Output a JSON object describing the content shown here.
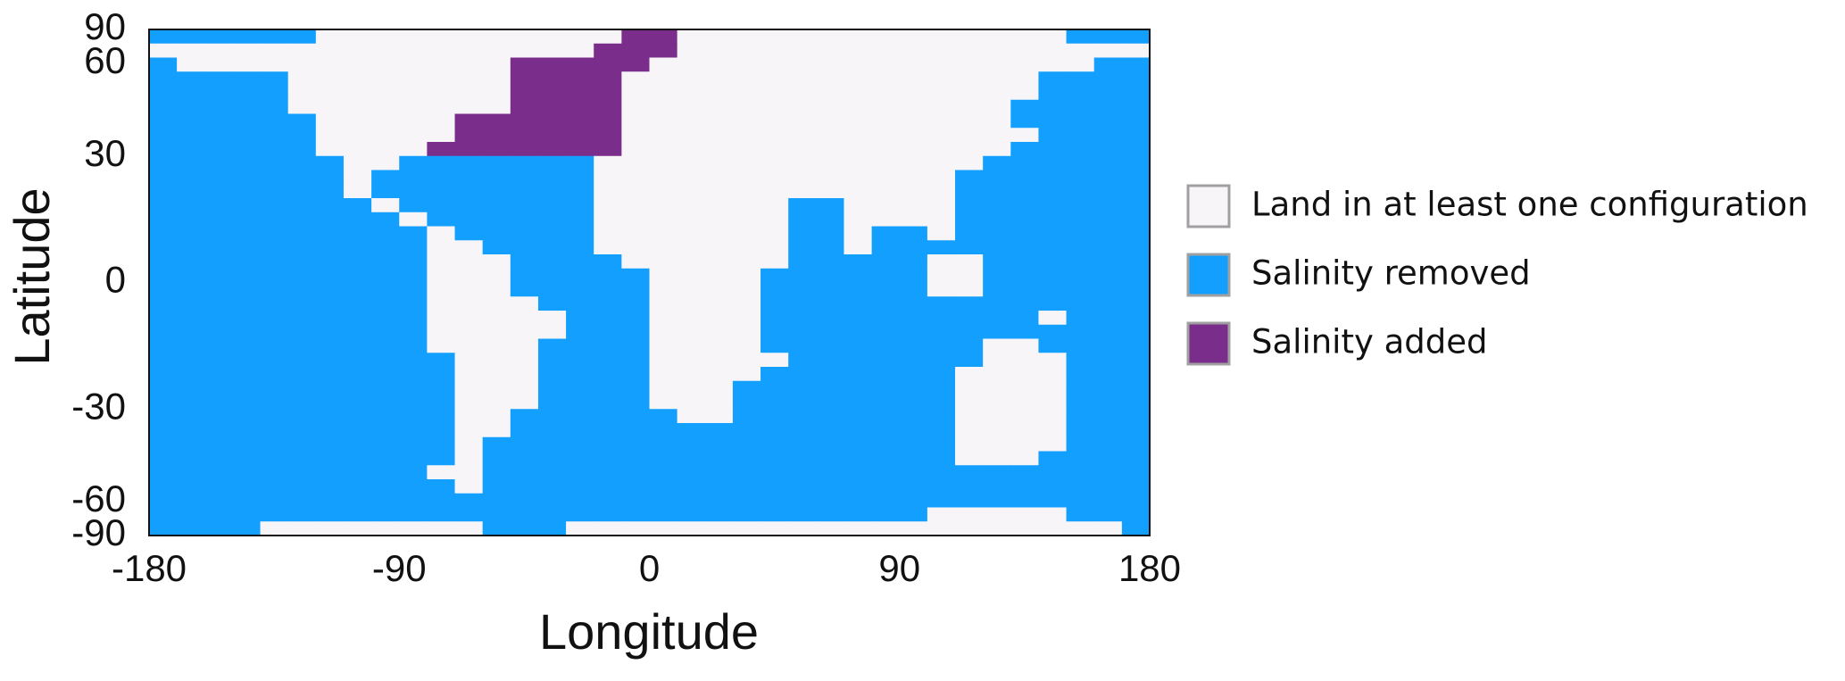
{
  "chart_data": {
    "type": "heatmap",
    "xlabel": "Longitude",
    "ylabel": "Latitude",
    "xlim": [
      -180,
      180
    ],
    "ylim": [
      -90,
      90
    ],
    "yscale": "sine",
    "xticks": [
      -180,
      -90,
      0,
      90,
      180
    ],
    "yticks": [
      -90,
      -60,
      -30,
      0,
      30,
      60,
      90
    ],
    "legend": "right",
    "series": [
      {
        "name": "Land in at least one configuration",
        "color": "#f8f5f9"
      },
      {
        "name": "Salinity removed",
        "color": "#139ffe"
      },
      {
        "name": "Salinity added",
        "color": "#7b2d8b"
      }
    ],
    "z": [
      [
        1,
        1,
        1,
        1,
        1,
        1,
        0,
        0,
        0,
        0,
        0,
        0,
        0,
        0,
        0,
        0,
        0,
        2,
        2,
        0,
        0,
        0,
        0,
        0,
        0,
        0,
        0,
        0,
        0,
        0,
        0,
        0,
        0,
        1,
        1,
        1
      ],
      [
        0,
        0,
        0,
        0,
        0,
        0,
        0,
        0,
        0,
        0,
        0,
        0,
        0,
        0,
        0,
        0,
        2,
        2,
        2,
        0,
        0,
        0,
        0,
        0,
        0,
        0,
        0,
        0,
        0,
        0,
        0,
        0,
        0,
        0,
        0,
        0
      ],
      [
        1,
        0,
        0,
        0,
        0,
        0,
        0,
        0,
        0,
        0,
        0,
        0,
        0,
        2,
        2,
        2,
        2,
        2,
        0,
        0,
        0,
        0,
        0,
        0,
        0,
        0,
        0,
        0,
        0,
        0,
        0,
        0,
        0,
        0,
        1,
        1
      ],
      [
        1,
        1,
        1,
        1,
        1,
        0,
        0,
        0,
        0,
        0,
        0,
        0,
        0,
        2,
        2,
        2,
        2,
        0,
        0,
        0,
        0,
        0,
        0,
        0,
        0,
        0,
        0,
        0,
        0,
        0,
        0,
        0,
        1,
        1,
        1,
        1
      ],
      [
        1,
        1,
        1,
        1,
        1,
        0,
        0,
        0,
        0,
        0,
        0,
        0,
        0,
        2,
        2,
        2,
        2,
        0,
        0,
        0,
        0,
        0,
        0,
        0,
        0,
        0,
        0,
        0,
        0,
        0,
        0,
        0,
        1,
        1,
        1,
        1
      ],
      [
        1,
        1,
        1,
        1,
        1,
        0,
        0,
        0,
        0,
        0,
        0,
        0,
        0,
        2,
        2,
        2,
        2,
        0,
        0,
        0,
        0,
        0,
        0,
        0,
        0,
        0,
        0,
        0,
        0,
        0,
        0,
        1,
        1,
        1,
        1,
        1
      ],
      [
        1,
        1,
        1,
        1,
        1,
        1,
        0,
        0,
        0,
        0,
        0,
        2,
        2,
        2,
        2,
        2,
        2,
        0,
        0,
        0,
        0,
        0,
        0,
        0,
        0,
        0,
        0,
        0,
        0,
        0,
        0,
        1,
        1,
        1,
        1,
        1
      ],
      [
        1,
        1,
        1,
        1,
        1,
        1,
        0,
        0,
        0,
        0,
        0,
        2,
        2,
        2,
        2,
        2,
        2,
        0,
        0,
        0,
        0,
        0,
        0,
        0,
        0,
        0,
        0,
        0,
        0,
        0,
        0,
        0,
        1,
        1,
        1,
        1
      ],
      [
        1,
        1,
        1,
        1,
        1,
        1,
        0,
        0,
        0,
        0,
        2,
        2,
        2,
        2,
        2,
        2,
        2,
        0,
        0,
        0,
        0,
        0,
        0,
        0,
        0,
        0,
        0,
        0,
        0,
        0,
        0,
        1,
        1,
        1,
        1,
        1
      ],
      [
        1,
        1,
        1,
        1,
        1,
        1,
        1,
        0,
        0,
        1,
        1,
        1,
        1,
        1,
        1,
        1,
        0,
        0,
        0,
        0,
        0,
        0,
        0,
        0,
        0,
        0,
        0,
        0,
        0,
        0,
        1,
        1,
        1,
        1,
        1,
        1
      ],
      [
        1,
        1,
        1,
        1,
        1,
        1,
        1,
        0,
        1,
        1,
        1,
        1,
        1,
        1,
        1,
        1,
        0,
        0,
        0,
        0,
        0,
        0,
        0,
        0,
        0,
        0,
        0,
        0,
        0,
        1,
        1,
        1,
        1,
        1,
        1,
        1
      ],
      [
        1,
        1,
        1,
        1,
        1,
        1,
        1,
        0,
        1,
        1,
        1,
        1,
        1,
        1,
        1,
        1,
        0,
        0,
        0,
        0,
        0,
        0,
        0,
        0,
        0,
        0,
        0,
        0,
        0,
        1,
        1,
        1,
        1,
        1,
        1,
        1
      ],
      [
        1,
        1,
        1,
        1,
        1,
        1,
        1,
        1,
        0,
        1,
        1,
        1,
        1,
        1,
        1,
        1,
        0,
        0,
        0,
        0,
        0,
        0,
        0,
        1,
        1,
        0,
        0,
        0,
        0,
        1,
        1,
        1,
        1,
        1,
        1,
        1
      ],
      [
        1,
        1,
        1,
        1,
        1,
        1,
        1,
        1,
        1,
        0,
        1,
        1,
        1,
        1,
        1,
        1,
        0,
        0,
        0,
        0,
        0,
        0,
        0,
        1,
        1,
        0,
        0,
        0,
        0,
        1,
        1,
        1,
        1,
        1,
        1,
        1
      ],
      [
        1,
        1,
        1,
        1,
        1,
        1,
        1,
        1,
        1,
        1,
        0,
        1,
        1,
        1,
        1,
        1,
        0,
        0,
        0,
        0,
        0,
        0,
        0,
        1,
        1,
        0,
        1,
        1,
        0,
        1,
        1,
        1,
        1,
        1,
        1,
        1
      ],
      [
        1,
        1,
        1,
        1,
        1,
        1,
        1,
        1,
        1,
        1,
        0,
        0,
        1,
        1,
        1,
        1,
        0,
        0,
        0,
        0,
        0,
        0,
        0,
        1,
        1,
        0,
        1,
        1,
        1,
        1,
        1,
        1,
        1,
        1,
        1,
        1
      ],
      [
        1,
        1,
        1,
        1,
        1,
        1,
        1,
        1,
        1,
        1,
        0,
        0,
        0,
        1,
        1,
        1,
        1,
        0,
        0,
        0,
        0,
        0,
        0,
        1,
        1,
        1,
        1,
        1,
        0,
        0,
        1,
        1,
        1,
        1,
        1,
        1
      ],
      [
        1,
        1,
        1,
        1,
        1,
        1,
        1,
        1,
        1,
        1,
        0,
        0,
        0,
        1,
        1,
        1,
        1,
        1,
        0,
        0,
        0,
        0,
        1,
        1,
        1,
        1,
        1,
        1,
        0,
        0,
        1,
        1,
        1,
        1,
        1,
        1
      ],
      [
        1,
        1,
        1,
        1,
        1,
        1,
        1,
        1,
        1,
        1,
        0,
        0,
        0,
        1,
        1,
        1,
        1,
        1,
        0,
        0,
        0,
        0,
        1,
        1,
        1,
        1,
        1,
        1,
        0,
        0,
        1,
        1,
        1,
        1,
        1,
        1
      ],
      [
        1,
        1,
        1,
        1,
        1,
        1,
        1,
        1,
        1,
        1,
        0,
        0,
        0,
        0,
        1,
        1,
        1,
        1,
        0,
        0,
        0,
        0,
        1,
        1,
        1,
        1,
        1,
        1,
        1,
        1,
        1,
        1,
        1,
        1,
        1,
        1
      ],
      [
        1,
        1,
        1,
        1,
        1,
        1,
        1,
        1,
        1,
        1,
        0,
        0,
        0,
        0,
        0,
        1,
        1,
        1,
        0,
        0,
        0,
        0,
        1,
        1,
        1,
        1,
        1,
        1,
        1,
        1,
        1,
        1,
        0,
        1,
        1,
        1
      ],
      [
        1,
        1,
        1,
        1,
        1,
        1,
        1,
        1,
        1,
        1,
        0,
        0,
        0,
        0,
        0,
        1,
        1,
        1,
        0,
        0,
        0,
        0,
        1,
        1,
        1,
        1,
        1,
        1,
        1,
        1,
        1,
        1,
        1,
        1,
        1,
        1
      ],
      [
        1,
        1,
        1,
        1,
        1,
        1,
        1,
        1,
        1,
        1,
        0,
        0,
        0,
        0,
        1,
        1,
        1,
        1,
        0,
        0,
        0,
        0,
        1,
        1,
        1,
        1,
        1,
        1,
        1,
        1,
        0,
        0,
        1,
        1,
        1,
        1
      ],
      [
        1,
        1,
        1,
        1,
        1,
        1,
        1,
        1,
        1,
        1,
        1,
        0,
        0,
        0,
        1,
        1,
        1,
        1,
        0,
        0,
        0,
        0,
        0,
        1,
        1,
        1,
        1,
        1,
        1,
        1,
        0,
        0,
        0,
        1,
        1,
        1
      ],
      [
        1,
        1,
        1,
        1,
        1,
        1,
        1,
        1,
        1,
        1,
        1,
        0,
        0,
        0,
        1,
        1,
        1,
        1,
        0,
        0,
        0,
        0,
        1,
        1,
        1,
        1,
        1,
        1,
        1,
        0,
        0,
        0,
        0,
        1,
        1,
        1
      ],
      [
        1,
        1,
        1,
        1,
        1,
        1,
        1,
        1,
        1,
        1,
        1,
        0,
        0,
        0,
        1,
        1,
        1,
        1,
        0,
        0,
        0,
        1,
        1,
        1,
        1,
        1,
        1,
        1,
        1,
        0,
        0,
        0,
        0,
        1,
        1,
        1
      ],
      [
        1,
        1,
        1,
        1,
        1,
        1,
        1,
        1,
        1,
        1,
        1,
        0,
        0,
        0,
        1,
        1,
        1,
        1,
        0,
        0,
        0,
        1,
        1,
        1,
        1,
        1,
        1,
        1,
        1,
        0,
        0,
        0,
        0,
        1,
        1,
        1
      ],
      [
        1,
        1,
        1,
        1,
        1,
        1,
        1,
        1,
        1,
        1,
        1,
        0,
        0,
        1,
        1,
        1,
        1,
        1,
        1,
        0,
        0,
        1,
        1,
        1,
        1,
        1,
        1,
        1,
        1,
        0,
        0,
        0,
        0,
        1,
        1,
        1
      ],
      [
        1,
        1,
        1,
        1,
        1,
        1,
        1,
        1,
        1,
        1,
        1,
        0,
        0,
        1,
        1,
        1,
        1,
        1,
        1,
        1,
        1,
        1,
        1,
        1,
        1,
        1,
        1,
        1,
        1,
        0,
        0,
        0,
        0,
        1,
        1,
        1
      ],
      [
        1,
        1,
        1,
        1,
        1,
        1,
        1,
        1,
        1,
        1,
        1,
        0,
        1,
        1,
        1,
        1,
        1,
        1,
        1,
        1,
        1,
        1,
        1,
        1,
        1,
        1,
        1,
        1,
        1,
        0,
        0,
        0,
        0,
        1,
        1,
        1
      ],
      [
        1,
        1,
        1,
        1,
        1,
        1,
        1,
        1,
        1,
        1,
        1,
        0,
        1,
        1,
        1,
        1,
        1,
        1,
        1,
        1,
        1,
        1,
        1,
        1,
        1,
        1,
        1,
        1,
        1,
        0,
        0,
        0,
        1,
        1,
        1,
        1
      ],
      [
        1,
        1,
        1,
        1,
        1,
        1,
        1,
        1,
        1,
        1,
        0,
        0,
        1,
        1,
        1,
        1,
        1,
        1,
        1,
        1,
        1,
        1,
        1,
        1,
        1,
        1,
        1,
        1,
        1,
        1,
        1,
        1,
        1,
        1,
        1,
        1
      ],
      [
        1,
        1,
        1,
        1,
        1,
        1,
        1,
        1,
        1,
        1,
        1,
        0,
        1,
        1,
        1,
        1,
        1,
        1,
        1,
        1,
        1,
        1,
        1,
        1,
        1,
        1,
        1,
        1,
        1,
        1,
        1,
        1,
        1,
        1,
        1,
        1
      ],
      [
        1,
        1,
        1,
        1,
        1,
        1,
        1,
        1,
        1,
        1,
        1,
        1,
        1,
        1,
        1,
        1,
        1,
        1,
        1,
        1,
        1,
        1,
        1,
        1,
        1,
        1,
        1,
        1,
        1,
        1,
        1,
        1,
        1,
        1,
        1,
        1
      ],
      [
        1,
        1,
        1,
        1,
        1,
        1,
        1,
        1,
        1,
        1,
        1,
        1,
        1,
        1,
        1,
        1,
        1,
        1,
        1,
        1,
        1,
        1,
        1,
        1,
        1,
        1,
        1,
        1,
        0,
        0,
        0,
        0,
        0,
        1,
        1,
        1
      ],
      [
        1,
        1,
        1,
        1,
        0,
        0,
        0,
        0,
        0,
        0,
        0,
        0,
        1,
        1,
        1,
        0,
        0,
        0,
        0,
        0,
        0,
        0,
        0,
        0,
        0,
        0,
        0,
        0,
        0,
        0,
        0,
        0,
        0,
        0,
        0,
        1
      ]
    ]
  }
}
